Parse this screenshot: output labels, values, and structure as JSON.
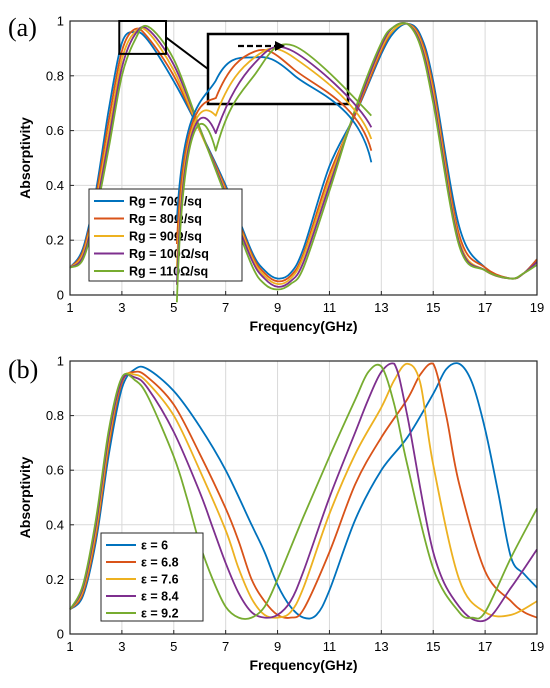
{
  "chart_data": [
    {
      "panel_label": "(a)",
      "type": "line",
      "xlabel": "Frequency(GHz)",
      "ylabel": "Absorptivity",
      "xlim": [
        1,
        19
      ],
      "ylim": [
        0,
        1
      ],
      "xticks": [
        1,
        3,
        5,
        7,
        9,
        11,
        13,
        15,
        17,
        19
      ],
      "yticks": [
        0,
        0.2,
        0.4,
        0.6,
        0.8,
        1
      ],
      "xtick_labels": [
        "1",
        "3",
        "5",
        "7",
        "9",
        "11",
        "13",
        "15",
        "17",
        "19"
      ],
      "ytick_labels": [
        "0",
        "0.2",
        "0.4",
        "0.6",
        "0.8",
        "1"
      ],
      "grid": true,
      "legend_position": "bottom-left",
      "inset": "zoom of peak near 3-4 GHz with arrow showing rightward shift",
      "series": [
        {
          "name": "Rg = 70Ω/sq",
          "color": "#0072BD",
          "x": [
            1,
            1.5,
            2,
            2.5,
            3,
            3.5,
            4,
            5,
            6,
            7,
            8,
            8.5,
            9,
            9.5,
            10,
            11,
            12,
            13,
            13.5,
            14,
            14.5,
            15,
            16,
            17,
            18,
            18.5,
            19
          ],
          "y": [
            0.1,
            0.17,
            0.38,
            0.68,
            0.92,
            0.96,
            0.93,
            0.78,
            0.6,
            0.4,
            0.16,
            0.09,
            0.06,
            0.08,
            0.17,
            0.47,
            0.66,
            0.88,
            0.96,
            0.99,
            0.95,
            0.78,
            0.25,
            0.1,
            0.06,
            0.08,
            0.13
          ]
        },
        {
          "name": "Rg = 80Ω/sq",
          "color": "#D95319",
          "x": [
            1,
            1.5,
            2,
            2.5,
            3,
            3.5,
            4,
            5,
            6,
            7,
            8,
            8.5,
            9,
            9.5,
            10,
            11,
            12,
            13,
            13.5,
            14,
            14.5,
            15,
            16,
            17,
            18,
            18.5,
            19
          ],
          "y": [
            0.1,
            0.16,
            0.36,
            0.64,
            0.89,
            0.97,
            0.94,
            0.8,
            0.6,
            0.39,
            0.15,
            0.08,
            0.05,
            0.07,
            0.15,
            0.44,
            0.66,
            0.89,
            0.97,
            0.99,
            0.94,
            0.76,
            0.22,
            0.1,
            0.06,
            0.08,
            0.13
          ]
        },
        {
          "name": "Rg = 90Ω/sq",
          "color": "#EDB120",
          "x": [
            1,
            1.5,
            2,
            2.5,
            3,
            3.5,
            4,
            5,
            6,
            7,
            8,
            8.5,
            9,
            9.5,
            10,
            11,
            12,
            13,
            13.5,
            14,
            14.5,
            15,
            16,
            17,
            18,
            18.5,
            19
          ],
          "y": [
            0.1,
            0.15,
            0.34,
            0.6,
            0.86,
            0.96,
            0.96,
            0.82,
            0.6,
            0.38,
            0.14,
            0.07,
            0.04,
            0.06,
            0.14,
            0.42,
            0.67,
            0.9,
            0.97,
            0.99,
            0.93,
            0.74,
            0.2,
            0.09,
            0.06,
            0.08,
            0.12
          ]
        },
        {
          "name": "Rg = 100Ω/sq",
          "color": "#7E2F8E",
          "x": [
            1,
            1.5,
            2,
            2.5,
            3,
            3.5,
            4,
            5,
            6,
            7,
            8,
            8.5,
            9,
            9.5,
            10,
            11,
            12,
            13,
            13.5,
            14,
            14.5,
            15,
            16,
            17,
            18,
            18.5,
            19
          ],
          "y": [
            0.1,
            0.14,
            0.32,
            0.57,
            0.83,
            0.95,
            0.97,
            0.84,
            0.61,
            0.37,
            0.13,
            0.06,
            0.03,
            0.05,
            0.12,
            0.4,
            0.67,
            0.91,
            0.98,
            0.99,
            0.92,
            0.72,
            0.19,
            0.09,
            0.06,
            0.08,
            0.12
          ]
        },
        {
          "name": "Rg = 110Ω/sq",
          "color": "#77AC30",
          "x": [
            1,
            1.5,
            2,
            2.5,
            3,
            3.5,
            4,
            5,
            6,
            7,
            8,
            8.5,
            9,
            9.5,
            10,
            11,
            12,
            13,
            13.5,
            14,
            14.5,
            15,
            16,
            17,
            18,
            18.5,
            19
          ],
          "y": [
            0.1,
            0.13,
            0.3,
            0.54,
            0.8,
            0.93,
            0.98,
            0.86,
            0.61,
            0.36,
            0.11,
            0.04,
            0.02,
            0.04,
            0.1,
            0.38,
            0.68,
            0.92,
            0.98,
            0.99,
            0.91,
            0.7,
            0.18,
            0.09,
            0.06,
            0.08,
            0.11
          ]
        }
      ]
    },
    {
      "panel_label": "(b)",
      "type": "line",
      "xlabel": "Frequency(GHz)",
      "ylabel": "Absorptivity",
      "xlim": [
        1,
        19
      ],
      "ylim": [
        0,
        1
      ],
      "xticks": [
        1,
        3,
        5,
        7,
        9,
        11,
        13,
        15,
        17,
        19
      ],
      "yticks": [
        0,
        0.2,
        0.4,
        0.6,
        0.8,
        1
      ],
      "xtick_labels": [
        "1",
        "3",
        "5",
        "7",
        "9",
        "11",
        "13",
        "15",
        "17",
        "19"
      ],
      "ytick_labels": [
        "0",
        "0.2",
        "0.4",
        "0.6",
        "0.8",
        "1"
      ],
      "grid": true,
      "legend_position": "bottom-left",
      "series": [
        {
          "name": "ε = 6",
          "color": "#0072BD",
          "x": [
            1,
            1.5,
            2,
            2.5,
            3,
            3.5,
            4,
            5,
            6,
            7,
            8,
            8.5,
            9,
            9.5,
            10,
            10.5,
            11,
            12,
            13,
            14,
            15,
            15.5,
            16,
            16.5,
            17,
            17.5,
            18,
            18.5,
            19
          ],
          "y": [
            0.09,
            0.14,
            0.34,
            0.66,
            0.9,
            0.97,
            0.97,
            0.89,
            0.76,
            0.6,
            0.4,
            0.3,
            0.18,
            0.1,
            0.06,
            0.07,
            0.16,
            0.42,
            0.6,
            0.72,
            0.88,
            0.97,
            0.99,
            0.92,
            0.75,
            0.52,
            0.28,
            0.22,
            0.17
          ]
        },
        {
          "name": "ε = 6.8",
          "color": "#D95319",
          "x": [
            1,
            1.5,
            2,
            2.5,
            3,
            3.5,
            4,
            5,
            6,
            7,
            7.5,
            8,
            8.5,
            9,
            9.5,
            10,
            11,
            12,
            13,
            14,
            14.5,
            15,
            15.5,
            16,
            17,
            18,
            18.5,
            19
          ],
          "y": [
            0.09,
            0.15,
            0.36,
            0.69,
            0.92,
            0.96,
            0.94,
            0.84,
            0.66,
            0.46,
            0.34,
            0.2,
            0.12,
            0.07,
            0.06,
            0.09,
            0.3,
            0.55,
            0.72,
            0.86,
            0.95,
            0.99,
            0.8,
            0.55,
            0.23,
            0.12,
            0.08,
            0.06
          ]
        },
        {
          "name": "ε = 7.6",
          "color": "#EDB120",
          "x": [
            1,
            1.5,
            2,
            2.5,
            3,
            3.5,
            4,
            5,
            6,
            7,
            7.5,
            8,
            8.5,
            9,
            9.5,
            10,
            11,
            12,
            13,
            13.5,
            14,
            14.5,
            15,
            16,
            17,
            18,
            19
          ],
          "y": [
            0.09,
            0.16,
            0.38,
            0.71,
            0.93,
            0.95,
            0.92,
            0.8,
            0.6,
            0.38,
            0.24,
            0.13,
            0.07,
            0.06,
            0.08,
            0.17,
            0.44,
            0.66,
            0.83,
            0.93,
            0.99,
            0.92,
            0.62,
            0.2,
            0.08,
            0.07,
            0.12
          ]
        },
        {
          "name": "ε = 8.4",
          "color": "#7E2F8E",
          "x": [
            1,
            1.5,
            2,
            2.5,
            3,
            3.5,
            4,
            5,
            6,
            6.5,
            7,
            7.5,
            8,
            8.5,
            9,
            9.5,
            10,
            11,
            12,
            12.5,
            13,
            13.5,
            14,
            15,
            16,
            17,
            18,
            19
          ],
          "y": [
            0.09,
            0.17,
            0.4,
            0.73,
            0.93,
            0.94,
            0.9,
            0.74,
            0.52,
            0.39,
            0.26,
            0.15,
            0.08,
            0.06,
            0.07,
            0.12,
            0.23,
            0.5,
            0.74,
            0.86,
            0.96,
            0.99,
            0.8,
            0.3,
            0.1,
            0.05,
            0.17,
            0.31
          ]
        },
        {
          "name": "ε = 9.2",
          "color": "#77AC30",
          "x": [
            1,
            1.5,
            2,
            2.5,
            3,
            3.5,
            4,
            5,
            5.5,
            6,
            6.5,
            7,
            7.5,
            8,
            8.5,
            9,
            10,
            11,
            12,
            12.5,
            13,
            13.5,
            14,
            15,
            16,
            16.5,
            17,
            18,
            19
          ],
          "y": [
            0.09,
            0.18,
            0.42,
            0.75,
            0.94,
            0.93,
            0.87,
            0.65,
            0.5,
            0.33,
            0.2,
            0.1,
            0.06,
            0.06,
            0.1,
            0.2,
            0.43,
            0.65,
            0.86,
            0.96,
            0.98,
            0.84,
            0.62,
            0.24,
            0.08,
            0.06,
            0.08,
            0.28,
            0.46
          ]
        }
      ]
    }
  ]
}
